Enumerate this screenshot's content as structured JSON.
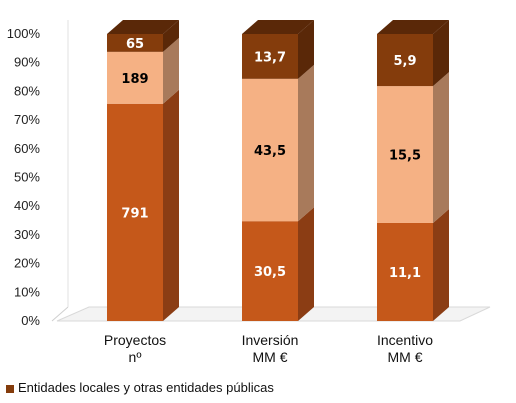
{
  "chart_data": {
    "type": "bar",
    "stacked": "percent",
    "three_d": true,
    "categories": [
      [
        "Proyectos",
        "nº"
      ],
      [
        "Inversión",
        "MM €"
      ],
      [
        "Incentivo",
        "MM €"
      ]
    ],
    "series": [
      {
        "name": "",
        "values": [
          791,
          30.5,
          11.1
        ],
        "labels": [
          "791",
          "30,5",
          "11,1"
        ],
        "color": "#C5581A",
        "side": "#8B3D14"
      },
      {
        "name": "",
        "values": [
          189,
          43.5,
          15.5
        ],
        "labels": [
          "189",
          "43,5",
          "15,5"
        ],
        "color": "#F5B184",
        "side": "#A87A5B"
      },
      {
        "name": "Entidades locales y otras entidades públicas",
        "values": [
          65,
          13.7,
          5.9
        ],
        "labels": [
          "65",
          "13,7",
          "5,9"
        ],
        "color": "#843C0C",
        "side": "#5A2808"
      }
    ],
    "y_ticks": [
      "0%",
      "10%",
      "20%",
      "30%",
      "40%",
      "50%",
      "60%",
      "70%",
      "80%",
      "90%",
      "100%"
    ],
    "ylim": [
      0,
      100
    ],
    "grid": false,
    "legend_position": "bottom-left"
  }
}
